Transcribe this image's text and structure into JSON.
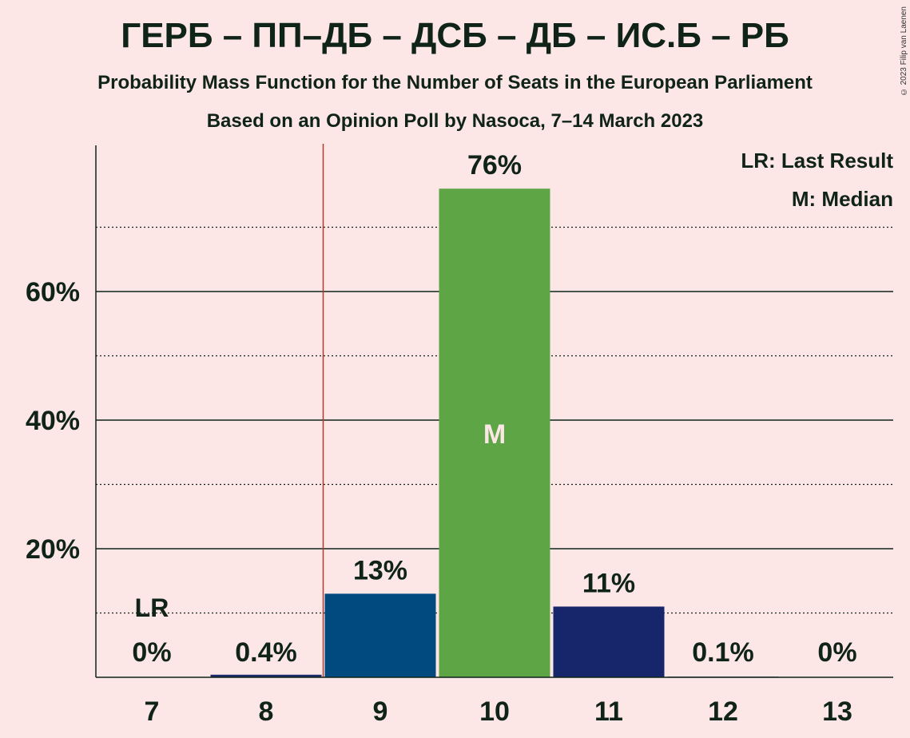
{
  "title": "ГЕРБ – ПП–ДБ – ДСБ – ДБ – ИС.Б – РБ",
  "subtitle": "Probability Mass Function for the Number of Seats in the European Parliament",
  "subtitle2": "Based on an Opinion Poll by Nasoca, 7–14 March 2023",
  "copyright": "© 2023 Filip van Laenen",
  "legend": {
    "last_result": "LR: Last Result",
    "median": "M: Median"
  },
  "chart_data": {
    "type": "bar",
    "categories": [
      "7",
      "8",
      "9",
      "10",
      "11",
      "12",
      "13"
    ],
    "values": [
      0,
      0.4,
      13,
      76,
      11,
      0.1,
      0
    ],
    "value_labels": [
      "0%",
      "0.4%",
      "13%",
      "76%",
      "11%",
      "0.1%",
      "0%"
    ],
    "bar_colors": [
      "#1a2a6b",
      "#1a2a6b",
      "#004a80",
      "#5ea545",
      "#17266b",
      "#1a2a6b",
      "#1a2a6b"
    ],
    "ylim": [
      0,
      83
    ],
    "yticks": [
      20,
      40,
      60
    ],
    "ytick_labels": [
      "20%",
      "40%",
      "60%"
    ],
    "minor_gridlines": [
      10,
      30,
      50,
      70
    ],
    "last_result_seat": "7",
    "last_result_label": "LR",
    "last_result_line_after": "8",
    "median_seat": "10",
    "median_label": "M",
    "grid": true,
    "legend_placement": "top-right"
  }
}
